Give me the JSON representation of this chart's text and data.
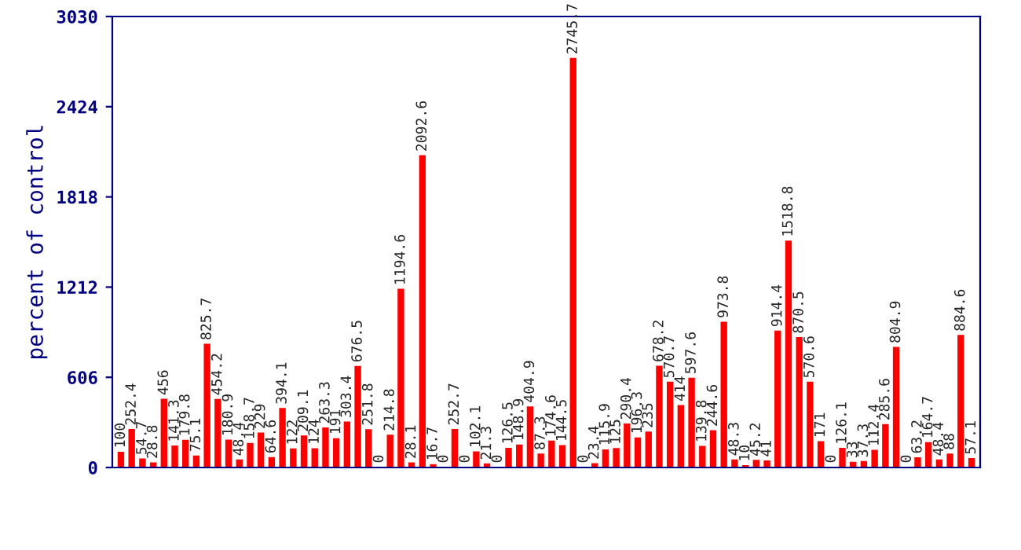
{
  "chart_data": {
    "type": "bar",
    "ylabel": "percent of control",
    "categories": [
      null,
      null,
      null,
      null,
      null,
      null,
      null,
      null,
      null,
      null,
      null,
      null,
      null,
      null,
      null,
      null,
      null,
      null,
      null,
      null,
      null,
      null,
      null,
      null,
      null,
      null,
      null,
      null,
      null,
      null,
      null,
      null,
      null,
      null,
      null,
      null,
      null,
      null,
      null,
      null,
      null,
      null,
      null,
      null,
      null,
      null,
      null,
      null,
      null,
      null,
      null,
      null,
      null,
      null,
      null,
      null,
      null,
      null,
      null,
      null,
      null,
      null,
      null,
      null,
      null,
      null,
      null,
      null,
      null,
      null,
      null,
      null,
      null,
      null,
      null,
      null,
      null,
      null,
      null,
      null
    ],
    "values": [
      100,
      252.4,
      54.7,
      28.8,
      456,
      141.3,
      179.8,
      75.1,
      825.7,
      454.2,
      180.9,
      48.4,
      158.7,
      229,
      64.6,
      394.1,
      122,
      209.1,
      124,
      263.3,
      191,
      303.4,
      676.5,
      251.8,
      0,
      214.8,
      1194.6,
      28.1,
      2092.6,
      16.7,
      0,
      252.7,
      0,
      102.1,
      21.3,
      0,
      126.5,
      148.9,
      404.9,
      87.3,
      174.6,
      144.5,
      2745.7,
      0,
      23.4,
      115.9,
      125,
      290.4,
      196.3,
      235,
      678.2,
      570.7,
      414,
      597.6,
      139.8,
      244.6,
      973.8,
      48.3,
      10,
      45.2,
      41,
      914.4,
      1518.8,
      870.5,
      570.6,
      171,
      0,
      126.1,
      33,
      37.3,
      112.4,
      285.6,
      804.9,
      0,
      63.2,
      164.7,
      48.4,
      88,
      884.6,
      57.1
    ],
    "color": "#ff0000",
    "ylim": [
      0,
      3030
    ],
    "yticks": [
      0,
      606,
      1212,
      1818,
      2424,
      3030
    ],
    "data_labels": true,
    "grid": false
  }
}
